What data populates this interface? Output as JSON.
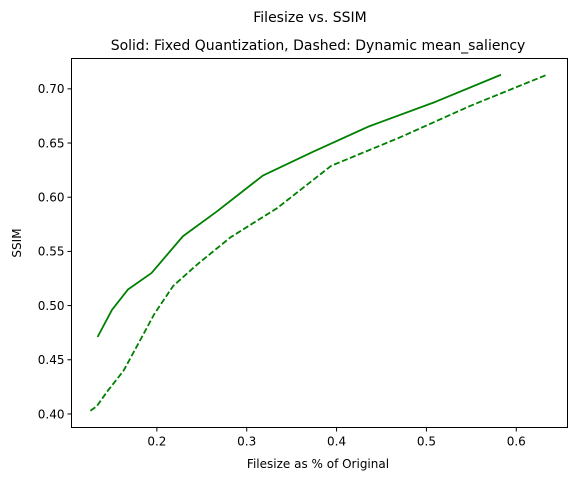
{
  "chart_data": {
    "type": "line",
    "suptitle": "Filesize vs. SSIM",
    "title": "Solid: Fixed Quantization, Dashed: Dynamic mean_saliency",
    "xlabel": "Filesize as % of Original",
    "ylabel": "SSIM",
    "xlim": [
      0.105,
      0.657
    ],
    "ylim": [
      0.3875,
      0.728
    ],
    "x_ticks": [
      0.2,
      0.3,
      0.4,
      0.5,
      0.6
    ],
    "x_tick_labels": [
      "0.2",
      "0.3",
      "0.4",
      "0.5",
      "0.6"
    ],
    "y_ticks": [
      0.4,
      0.45,
      0.5,
      0.55,
      0.6,
      0.65,
      0.7
    ],
    "y_tick_labels": [
      "0.40",
      "0.45",
      "0.50",
      "0.55",
      "0.60",
      "0.65",
      "0.70"
    ],
    "grid": false,
    "series": [
      {
        "style": "solid",
        "color": "#008000",
        "x": [
          0.134,
          0.15,
          0.168,
          0.194,
          0.229,
          0.267,
          0.318,
          0.374,
          0.435,
          0.51,
          0.583
        ],
        "y": [
          0.471,
          0.496,
          0.515,
          0.53,
          0.564,
          0.587,
          0.62,
          0.642,
          0.665,
          0.688,
          0.713
        ]
      },
      {
        "style": "dashed",
        "color": "#008000",
        "x": [
          0.126,
          0.133,
          0.145,
          0.163,
          0.184,
          0.197,
          0.218,
          0.245,
          0.282,
          0.334,
          0.394,
          0.47,
          0.548,
          0.634
        ],
        "y": [
          0.403,
          0.407,
          0.421,
          0.44,
          0.472,
          0.492,
          0.518,
          0.538,
          0.563,
          0.59,
          0.629,
          0.655,
          0.684,
          0.713
        ]
      }
    ]
  }
}
